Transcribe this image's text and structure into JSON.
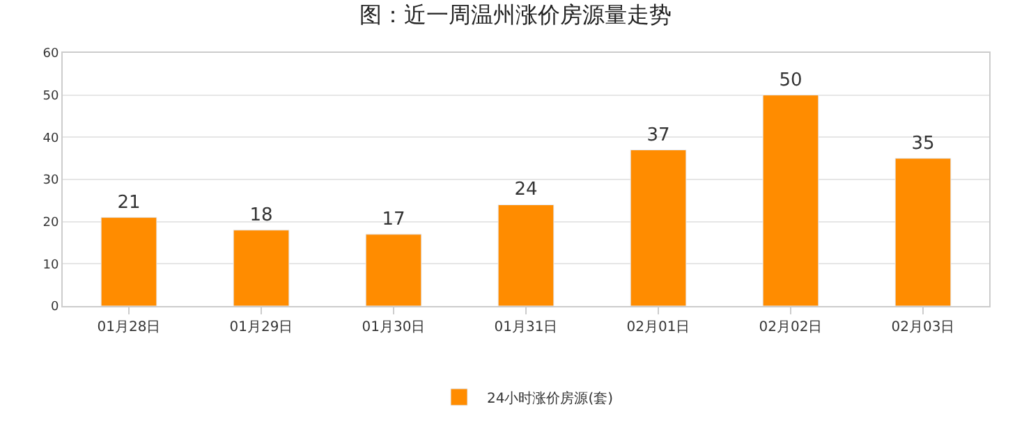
{
  "chart_data": {
    "type": "bar",
    "title": "图：近一周温州涨价房源量走势",
    "categories": [
      "01月28日",
      "01月29日",
      "01月30日",
      "01月31日",
      "02月01日",
      "02月02日",
      "02月03日"
    ],
    "series": [
      {
        "name": "24小时涨价房源(套)",
        "color": "#ff8c00",
        "values": [
          21,
          18,
          17,
          24,
          37,
          50,
          35
        ]
      }
    ],
    "ylim": [
      0,
      60
    ],
    "yticks": [
      0,
      10,
      20,
      30,
      40,
      50,
      60
    ],
    "grid": "y",
    "legend": "bottom",
    "data_labels": true
  }
}
